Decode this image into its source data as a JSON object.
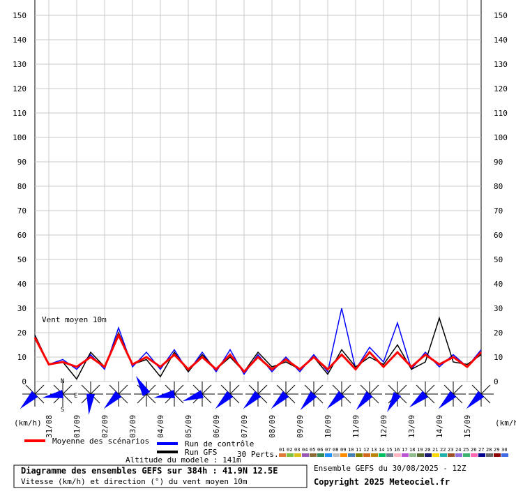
{
  "chart_data": {
    "type": "line",
    "annotation": "Vent moyen 10m",
    "y_unit_left": "(km/h)",
    "y_unit_right": "(km/h)",
    "x": [
      0,
      12,
      24,
      36,
      48,
      60,
      72,
      84,
      96,
      108,
      120,
      132,
      144,
      156,
      168,
      180,
      192,
      204,
      216,
      228,
      240,
      252,
      264,
      276,
      288,
      300,
      312,
      324,
      336,
      348,
      360,
      372,
      384
    ],
    "xlim": [
      0,
      384
    ],
    "xticks": [
      {
        "value": 12,
        "label": "31/08"
      },
      {
        "value": 36,
        "label": "01/09"
      },
      {
        "value": 60,
        "label": "02/09"
      },
      {
        "value": 84,
        "label": "03/09"
      },
      {
        "value": 108,
        "label": "04/09"
      },
      {
        "value": 132,
        "label": "05/09"
      },
      {
        "value": 156,
        "label": "06/09"
      },
      {
        "value": 180,
        "label": "07/09"
      },
      {
        "value": 204,
        "label": "08/09"
      },
      {
        "value": 228,
        "label": "09/09"
      },
      {
        "value": 252,
        "label": "10/09"
      },
      {
        "value": 276,
        "label": "11/09"
      },
      {
        "value": 300,
        "label": "12/09"
      },
      {
        "value": 324,
        "label": "13/09"
      },
      {
        "value": 348,
        "label": "14/09"
      },
      {
        "value": 372,
        "label": "15/09"
      }
    ],
    "ylim": [
      0,
      150
    ],
    "yticks": [
      0,
      10,
      20,
      30,
      40,
      50,
      60,
      70,
      80,
      90,
      100,
      110,
      120,
      130,
      140,
      150
    ],
    "grid": true,
    "series": [
      {
        "name": "Run de contrôle",
        "color": "#0000ff",
        "values": [
          19,
          7,
          9,
          5,
          11,
          5,
          22,
          6,
          12,
          5,
          13,
          4,
          12,
          4,
          13,
          3,
          11,
          4,
          10,
          4,
          11,
          4,
          30,
          5,
          14,
          8,
          24,
          5,
          12,
          6,
          11,
          6,
          13
        ]
      },
      {
        "name": "Run GFS",
        "color": "#000000",
        "values": [
          19,
          7,
          8,
          1,
          12,
          6,
          20,
          7,
          9,
          2,
          12,
          4,
          11,
          5,
          10,
          4,
          12,
          6,
          8,
          5,
          10,
          3,
          13,
          6,
          10,
          7,
          15,
          5,
          8,
          26,
          8,
          7,
          11
        ]
      },
      {
        "name": "Moyenne des scénarios",
        "color": "#ff0000",
        "values": [
          18,
          7,
          8,
          6,
          10,
          6,
          19,
          7,
          10,
          6,
          11,
          5,
          10,
          5,
          11,
          4,
          10,
          5,
          9,
          5,
          10,
          5,
          11,
          5,
          12,
          6,
          12,
          6,
          11,
          7,
          10,
          6,
          12
        ]
      }
    ],
    "perturbations_label": "30 Perts.",
    "perturbations": [
      {
        "name": "01",
        "color": "#e07b39"
      },
      {
        "name": "02",
        "color": "#7fbf3f"
      },
      {
        "name": "03",
        "color": "#d9c21c"
      },
      {
        "name": "04",
        "color": "#9b59b6"
      },
      {
        "name": "05",
        "color": "#8e6b3a"
      },
      {
        "name": "06",
        "color": "#2e8b57"
      },
      {
        "name": "07",
        "color": "#1e90ff"
      },
      {
        "name": "08",
        "color": "#c0c0c0"
      },
      {
        "name": "09",
        "color": "#ff8c00"
      },
      {
        "name": "10",
        "color": "#4682b4"
      },
      {
        "name": "11",
        "color": "#808000"
      },
      {
        "name": "12",
        "color": "#d2691e"
      },
      {
        "name": "13",
        "color": "#b8860b"
      },
      {
        "name": "14",
        "color": "#00c060"
      },
      {
        "name": "15",
        "color": "#708090"
      },
      {
        "name": "16",
        "color": "#ffb6c1"
      },
      {
        "name": "17",
        "color": "#ba55d3"
      },
      {
        "name": "18",
        "color": "#8fbc8f"
      },
      {
        "name": "19",
        "color": "#556b2f"
      },
      {
        "name": "20",
        "color": "#191970"
      },
      {
        "name": "21",
        "color": "#ffd700"
      },
      {
        "name": "22",
        "color": "#20b2aa"
      },
      {
        "name": "23",
        "color": "#a0522d"
      },
      {
        "name": "24",
        "color": "#9370db"
      },
      {
        "name": "25",
        "color": "#3cb371"
      },
      {
        "name": "26",
        "color": "#ff69b4"
      },
      {
        "name": "27",
        "color": "#00008b"
      },
      {
        "name": "28",
        "color": "#696969"
      },
      {
        "name": "29",
        "color": "#8b0000"
      },
      {
        "name": "30",
        "color": "#4169e1"
      }
    ],
    "wind_rose_x": [
      0,
      24,
      48,
      72,
      96,
      120,
      144,
      168,
      192,
      216,
      240,
      264,
      288,
      312,
      336,
      360,
      384
    ],
    "wind_direction": [
      225,
      260,
      185,
      225,
      330,
      260,
      250,
      225,
      225,
      225,
      220,
      225,
      220,
      210,
      230,
      225,
      225
    ],
    "rose_labels": {
      "n": "N",
      "e": "E",
      "s": "S"
    },
    "altitude": "Altitude du modele : 141m",
    "footer_title": "Diagramme des ensembles GEFS sur 384h : 41.9N 12.5E",
    "footer_subtitle": "Vitesse (km/h) et direction (°) du vent moyen 10m",
    "run_info": "Ensemble GEFS du 30/08/2025 - 12Z",
    "copyright": "Copyright 2025 Meteociel.fr"
  }
}
